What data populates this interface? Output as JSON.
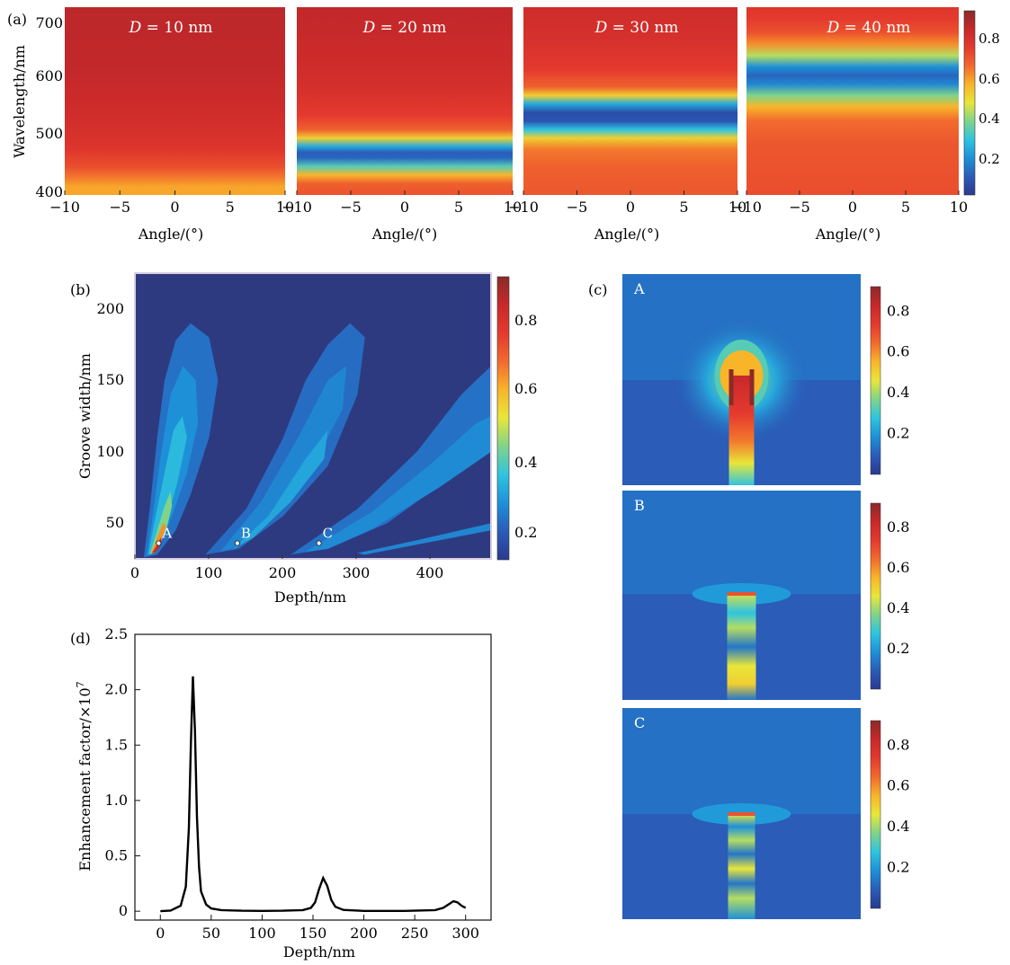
{
  "panel_labels": {
    "a": "(a)",
    "b": "(b)",
    "c": "(c)",
    "d": "(d)"
  },
  "colorbar_ticks": [
    "0.8",
    "0.6",
    "0.4",
    "0.2"
  ],
  "colormap": [
    "#2b3990",
    "#2a5cb8",
    "#1e90d8",
    "#2ec4e0",
    "#7fd48a",
    "#e8e63a",
    "#f8b52a",
    "#f26a2e",
    "#e43a2e",
    "#c8282a",
    "#8c2a2a"
  ],
  "chart_data": [
    {
      "type": "heatmap",
      "panel": "a",
      "title_var": "D",
      "title_unit": "= 10 nm",
      "xlabel": "Angle/(°)",
      "ylabel": "Wavelength/nm",
      "xticks": [
        "−10",
        "−5",
        "0",
        "5",
        "10"
      ],
      "yticks": [
        "700",
        "600",
        "500",
        "400"
      ],
      "xlim": [
        -10,
        10
      ],
      "ylim": [
        390,
        720
      ],
      "profile": [
        {
          "wl": 390,
          "v": 0.62
        },
        {
          "wl": 405,
          "v": 0.62
        },
        {
          "wl": 420,
          "v": 0.68
        },
        {
          "wl": 440,
          "v": 0.76
        },
        {
          "wl": 470,
          "v": 0.82
        },
        {
          "wl": 510,
          "v": 0.86
        },
        {
          "wl": 560,
          "v": 0.89
        },
        {
          "wl": 620,
          "v": 0.91
        },
        {
          "wl": 720,
          "v": 0.92
        }
      ]
    },
    {
      "type": "heatmap",
      "panel": "a",
      "title_var": "D",
      "title_unit": "= 20 nm",
      "xlabel": "Angle/(°)",
      "xticks": [
        "−10",
        "−5",
        "0",
        "5",
        "10"
      ],
      "xlim": [
        -10,
        10
      ],
      "ylim": [
        390,
        720
      ],
      "profile": [
        {
          "wl": 390,
          "v": 0.75
        },
        {
          "wl": 410,
          "v": 0.72
        },
        {
          "wl": 425,
          "v": 0.6
        },
        {
          "wl": 440,
          "v": 0.35
        },
        {
          "wl": 455,
          "v": 0.12
        },
        {
          "wl": 465,
          "v": 0.1
        },
        {
          "wl": 475,
          "v": 0.25
        },
        {
          "wl": 490,
          "v": 0.55
        },
        {
          "wl": 505,
          "v": 0.72
        },
        {
          "wl": 530,
          "v": 0.8
        },
        {
          "wl": 580,
          "v": 0.86
        },
        {
          "wl": 640,
          "v": 0.89
        },
        {
          "wl": 720,
          "v": 0.91
        }
      ]
    },
    {
      "type": "heatmap",
      "panel": "a",
      "title_var": "D",
      "title_unit": "= 30 nm",
      "xlabel": "Angle/(°)",
      "xticks": [
        "−10",
        "−5",
        "0",
        "5",
        "10"
      ],
      "xlim": [
        -10,
        10
      ],
      "ylim": [
        390,
        720
      ],
      "profile": [
        {
          "wl": 390,
          "v": 0.74
        },
        {
          "wl": 440,
          "v": 0.72
        },
        {
          "wl": 470,
          "v": 0.68
        },
        {
          "wl": 490,
          "v": 0.55
        },
        {
          "wl": 505,
          "v": 0.3
        },
        {
          "wl": 520,
          "v": 0.08
        },
        {
          "wl": 535,
          "v": 0.06
        },
        {
          "wl": 550,
          "v": 0.25
        },
        {
          "wl": 565,
          "v": 0.55
        },
        {
          "wl": 580,
          "v": 0.72
        },
        {
          "wl": 610,
          "v": 0.8
        },
        {
          "wl": 660,
          "v": 0.85
        },
        {
          "wl": 720,
          "v": 0.88
        }
      ]
    },
    {
      "type": "heatmap",
      "panel": "a",
      "title_var": "D",
      "title_unit": "= 40 nm",
      "xlabel": "Angle/(°)",
      "xticks": [
        "−10",
        "−5",
        "0",
        "5",
        "10"
      ],
      "xlim": [
        -10,
        10
      ],
      "ylim": [
        390,
        720
      ],
      "profile": [
        {
          "wl": 390,
          "v": 0.76
        },
        {
          "wl": 480,
          "v": 0.74
        },
        {
          "wl": 520,
          "v": 0.7
        },
        {
          "wl": 545,
          "v": 0.6
        },
        {
          "wl": 565,
          "v": 0.4
        },
        {
          "wl": 585,
          "v": 0.18
        },
        {
          "wl": 600,
          "v": 0.12
        },
        {
          "wl": 615,
          "v": 0.2
        },
        {
          "wl": 635,
          "v": 0.45
        },
        {
          "wl": 655,
          "v": 0.65
        },
        {
          "wl": 675,
          "v": 0.75
        },
        {
          "wl": 700,
          "v": 0.8
        },
        {
          "wl": 720,
          "v": 0.82
        }
      ]
    },
    {
      "type": "heatmap",
      "panel": "b",
      "xlabel": "Depth/nm",
      "ylabel": "Groove width/nm",
      "xticks": [
        "0",
        "100",
        "200",
        "300",
        "400"
      ],
      "yticks": [
        "200",
        "150",
        "100",
        "50"
      ],
      "xlim": [
        0,
        480
      ],
      "ylim": [
        25,
        225
      ],
      "points": [
        {
          "label": "A",
          "depth": 32,
          "width": 36
        },
        {
          "label": "B",
          "depth": 138,
          "width": 36
        },
        {
          "label": "C",
          "depth": 248,
          "width": 36
        }
      ]
    },
    {
      "type": "heatmap",
      "panel": "c",
      "maps": [
        {
          "label": "A",
          "peak": 0.9
        },
        {
          "label": "B",
          "peak": 0.9
        },
        {
          "label": "C",
          "peak": 0.85
        }
      ]
    },
    {
      "type": "line",
      "panel": "d",
      "xlabel": "Depth/nm",
      "ylabel_base": "Enhancement factor/×10",
      "ylabel_exp": "7",
      "xticks": [
        "0",
        "50",
        "100",
        "150",
        "200",
        "250",
        "300"
      ],
      "yticks": [
        "0",
        "0.5",
        "1.0",
        "1.5",
        "2.0",
        "2.5"
      ],
      "xlim": [
        -25,
        325
      ],
      "ylim": [
        -0.08,
        2.5
      ],
      "series": [
        {
          "x": [
            0,
            10,
            20,
            25,
            28,
            30,
            32,
            34,
            36,
            38,
            40,
            45,
            50,
            60,
            80,
            100,
            120,
            140,
            148,
            152,
            156,
            160,
            164,
            168,
            172,
            180,
            200,
            240,
            270,
            278,
            283,
            288,
            292,
            296,
            300
          ],
          "y": [
            0,
            0.005,
            0.05,
            0.22,
            0.75,
            1.5,
            2.12,
            1.62,
            0.85,
            0.4,
            0.18,
            0.06,
            0.025,
            0.01,
            0.004,
            0.003,
            0.004,
            0.01,
            0.03,
            0.08,
            0.2,
            0.3,
            0.23,
            0.1,
            0.04,
            0.012,
            0.003,
            0.003,
            0.01,
            0.03,
            0.06,
            0.09,
            0.08,
            0.05,
            0.03
          ]
        }
      ]
    }
  ]
}
